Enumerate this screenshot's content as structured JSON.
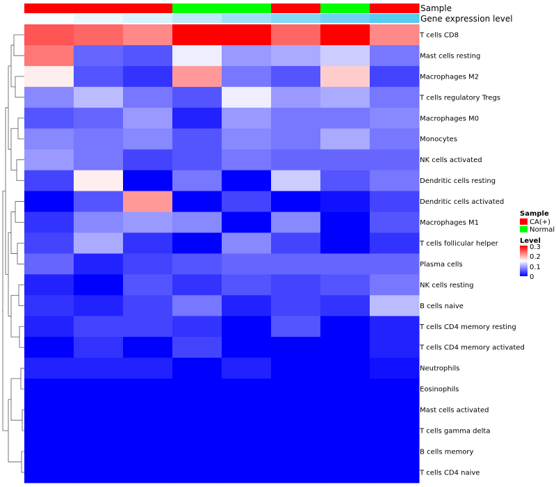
{
  "chart_data": {
    "type": "heatmap",
    "annotation_rows": [
      "Sample",
      "Gene expression level"
    ],
    "sample_groups": [
      "CA(+)",
      "CA(+)",
      "CA(+)",
      "Normal",
      "Normal",
      "CA(+)",
      "Normal",
      "CA(+)"
    ],
    "gene_expression_level": [
      0.02,
      0.12,
      0.22,
      0.38,
      0.55,
      0.7,
      0.82,
      0.95
    ],
    "row_labels": [
      "T cells CD8",
      "Mast cells resting",
      "Macrophages M2",
      "T cells regulatory  Tregs",
      "Macrophages M0",
      "Monocytes",
      "NK cells activated",
      "Dendritic cells resting",
      "Dendritic cells activated",
      "Macrophages M1",
      "T cells follicular helper",
      "Plasma cells",
      "NK cells resting",
      "B cells naive",
      "T cells CD4 memory resting",
      "T cells CD4 memory activated",
      "Neutrophils",
      "Eosinophils",
      "Mast cells activated",
      "T cells gamma delta",
      "B cells memory",
      "T cells CD4 naive"
    ],
    "values": [
      [
        0.25,
        0.24,
        0.22,
        0.3,
        0.3,
        0.24,
        0.3,
        0.22
      ],
      [
        0.23,
        0.06,
        0.05,
        0.14,
        0.09,
        0.1,
        0.12,
        0.07
      ],
      [
        0.16,
        0.05,
        0.03,
        0.21,
        0.07,
        0.05,
        0.18,
        0.04
      ],
      [
        0.08,
        0.11,
        0.07,
        0.05,
        0.14,
        0.09,
        0.1,
        0.07
      ],
      [
        0.05,
        0.06,
        0.09,
        0.02,
        0.09,
        0.07,
        0.07,
        0.08
      ],
      [
        0.08,
        0.07,
        0.08,
        0.05,
        0.08,
        0.07,
        0.1,
        0.07
      ],
      [
        0.09,
        0.07,
        0.04,
        0.05,
        0.07,
        0.06,
        0.06,
        0.06
      ],
      [
        0.04,
        0.16,
        0.0,
        0.07,
        0.0,
        0.12,
        0.05,
        0.07
      ],
      [
        0.0,
        0.05,
        0.21,
        0.0,
        0.04,
        0.0,
        0.01,
        0.04
      ],
      [
        0.03,
        0.08,
        0.09,
        0.08,
        0.0,
        0.08,
        0.0,
        0.05
      ],
      [
        0.04,
        0.1,
        0.03,
        0.0,
        0.08,
        0.04,
        0.0,
        0.03
      ],
      [
        0.06,
        0.02,
        0.04,
        0.05,
        0.06,
        0.06,
        0.06,
        0.06
      ],
      [
        0.02,
        0.0,
        0.05,
        0.03,
        0.05,
        0.04,
        0.05,
        0.07
      ],
      [
        0.03,
        0.02,
        0.04,
        0.07,
        0.02,
        0.04,
        0.03,
        0.11
      ],
      [
        0.02,
        0.04,
        0.04,
        0.03,
        0.0,
        0.05,
        0.0,
        0.02
      ],
      [
        0.0,
        0.03,
        0.0,
        0.04,
        0.0,
        0.0,
        0.0,
        0.02
      ],
      [
        0.02,
        0.02,
        0.02,
        0.0,
        0.02,
        0.0,
        0.0,
        0.01
      ],
      [
        0.0,
        0.0,
        0.0,
        0.0,
        0.0,
        0.0,
        0.0,
        0.0
      ],
      [
        0.0,
        0.0,
        0.0,
        0.0,
        0.0,
        0.0,
        0.0,
        0.0
      ],
      [
        0.0,
        0.0,
        0.0,
        0.0,
        0.0,
        0.0,
        0.0,
        0.0
      ],
      [
        0.0,
        0.0,
        0.0,
        0.0,
        0.0,
        0.0,
        0.0,
        0.0
      ],
      [
        0.0,
        0.0,
        0.0,
        0.0,
        0.0,
        0.0,
        0.0,
        0.0
      ]
    ],
    "color_scale": {
      "min": 0,
      "mid": 0.15,
      "max": 0.3,
      "low": "#0000ff",
      "midColor": "#ffffff",
      "high": "#ff0000"
    },
    "legend": {
      "sample_title": "Sample",
      "sample_entries": [
        {
          "label": "CA(+)",
          "color": "#ff0000"
        },
        {
          "label": "Normal",
          "color": "#00ff00"
        }
      ],
      "level_title": "Level",
      "level_ticks": [
        "0.3",
        "0.2",
        "0.1",
        "0"
      ],
      "placement": "right"
    },
    "gene_expression_colors": {
      "low": "#ffffff",
      "high": "#4fc8f0"
    },
    "dendrogram": "row"
  }
}
